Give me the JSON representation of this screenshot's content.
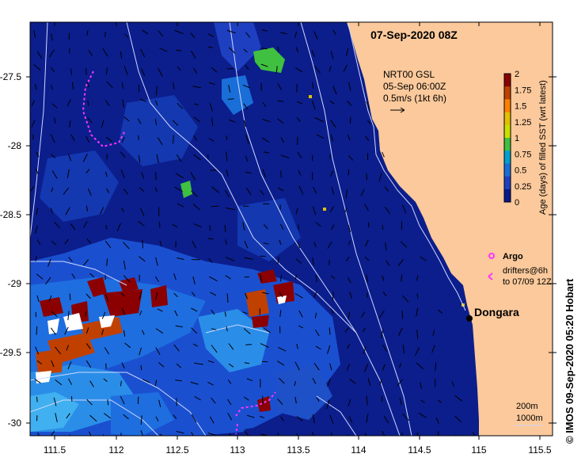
{
  "header": {
    "date_title": "07-Sep-2020 08Z",
    "current_source": "NRT00 GSL",
    "current_time": "05-Sep 06:00Z",
    "current_scale": "0.5m/s (1kt 6h)"
  },
  "colorbar": {
    "label": "Age (days) of filled SST (wrt latest)",
    "ticks": [
      "2",
      "1.75",
      "1.5",
      "1.25",
      "1",
      "0.75",
      "0.5",
      "0.25",
      "0"
    ],
    "colors": [
      "#8b0000",
      "#c04000",
      "#ff8000",
      "#e0c000",
      "#c8e000",
      "#40c040",
      "#00a0d0",
      "#1a6ed8",
      "#1e40c0",
      "#0a1a8a"
    ]
  },
  "legend": {
    "argo_label": "Argo",
    "drifters_line1": "drifters@6h",
    "drifters_line2": "to 07/09 12Z",
    "contour_200": "200m",
    "contour_1000": "1000m"
  },
  "places": {
    "town": "Dongara"
  },
  "axes": {
    "x_ticks": [
      "111.5",
      "112",
      "112.5",
      "113",
      "113.5",
      "114",
      "114.5",
      "115",
      "115.5"
    ],
    "y_ticks": [
      "-27.5",
      "-28",
      "-28.5",
      "-29",
      "-29.5",
      "-30"
    ],
    "lon_range": [
      111.3,
      115.6
    ],
    "lat_range": [
      -30.1,
      -27.1
    ]
  },
  "credit": "© IMOS 09-Sep-2020 05:20 Hobart",
  "colors": {
    "ocean": "#0c1e8c",
    "land": "#fbc99b",
    "argo": "#ff33ff",
    "contour": "#cfd8ff"
  }
}
